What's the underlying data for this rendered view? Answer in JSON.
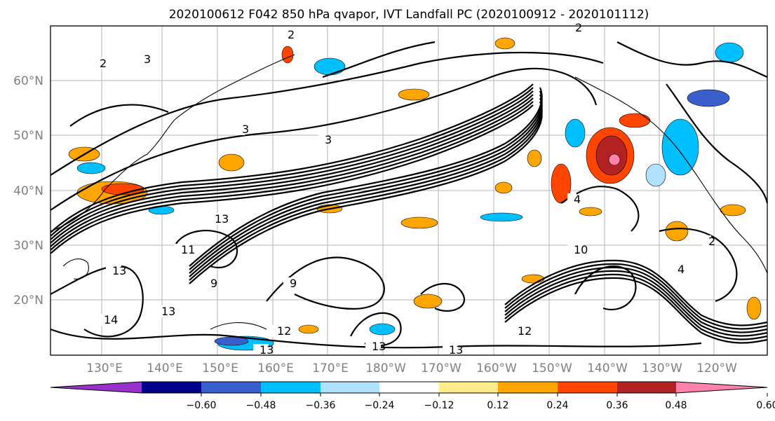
{
  "title": "2020100612 F042 850 hPa qvapor, IVT Landfall PC (2020100912 - 2020101112)",
  "map": {
    "lat_labels": [
      "60°N",
      "50°N",
      "40°N",
      "30°N",
      "20°N"
    ],
    "lon_labels": [
      "130°E",
      "140°E",
      "150°E",
      "160°E",
      "170°E",
      "180°W",
      "170°W",
      "160°W",
      "150°W",
      "140°W",
      "130°W",
      "120°W"
    ],
    "contour_labels": [
      "2",
      "3",
      "2",
      "3",
      "2",
      "3",
      "13",
      "11",
      "13",
      "13",
      "14",
      "9",
      "9",
      "12",
      "13",
      "13",
      "12",
      "13",
      "10",
      "4",
      "4",
      "2"
    ]
  },
  "colorbar": {
    "colors": [
      "#9932cc",
      "#00008b",
      "#3a5fcd",
      "#00bfff",
      "#b0e2ff",
      "#ffffff",
      "#ffec8b",
      "#ffa500",
      "#ff4500",
      "#b22222",
      "#ff82ab"
    ],
    "tick_labels": [
      "−0.60",
      "−0.48",
      "−0.36",
      "−0.24",
      "−0.12",
      "0.12",
      "0.24",
      "0.36",
      "0.48",
      "0.60"
    ]
  }
}
